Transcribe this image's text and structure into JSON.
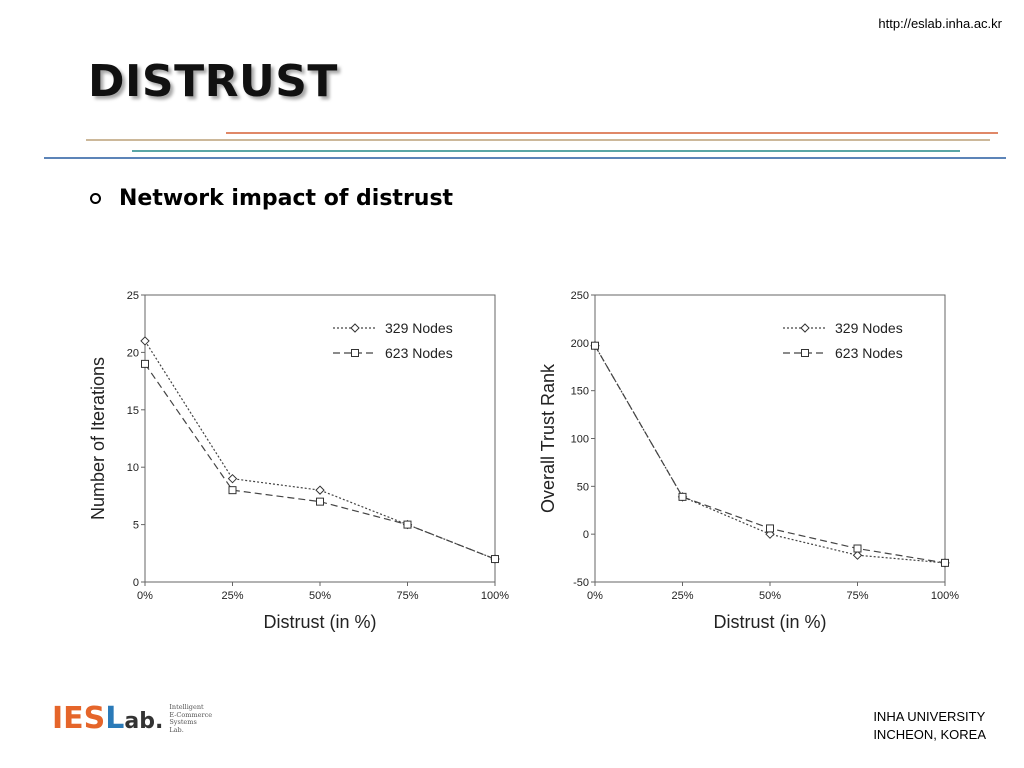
{
  "header": {
    "url": "http://eslab.inha.ac.kr",
    "title": "DISTRUST",
    "rule_colors": [
      "#e08868",
      "#ccb89a",
      "#5aa6a6",
      "#5c84b8"
    ]
  },
  "bullet": {
    "text": "Network impact of distrust"
  },
  "chart_data": [
    {
      "type": "line",
      "x": [
        "0%",
        "25%",
        "50%",
        "75%",
        "100%"
      ],
      "xlabel": "Distrust (in %)",
      "ylabel": "Number of Iterations",
      "ylim": [
        0,
        25
      ],
      "yticks": [
        0,
        5,
        10,
        15,
        20,
        25
      ],
      "legend_position": "top-right",
      "grid": false,
      "series": [
        {
          "name": "329 Nodes",
          "marker": "diamond",
          "dash": "dotted",
          "values": [
            21,
            9,
            8,
            5,
            2
          ]
        },
        {
          "name": "623 Nodes",
          "marker": "square",
          "dash": "dashed",
          "values": [
            19,
            8,
            7,
            5,
            2
          ]
        }
      ]
    },
    {
      "type": "line",
      "x": [
        "0%",
        "25%",
        "50%",
        "75%",
        "100%"
      ],
      "xlabel": "Distrust (in %)",
      "ylabel": "Overall Trust Rank",
      "ylim": [
        -50,
        250
      ],
      "yticks": [
        -50,
        0,
        50,
        100,
        150,
        200,
        250
      ],
      "legend_position": "top-right",
      "grid": false,
      "series": [
        {
          "name": "329 Nodes",
          "marker": "diamond",
          "dash": "dotted",
          "values": [
            197,
            39,
            0,
            -22,
            -30
          ]
        },
        {
          "name": "623 Nodes",
          "marker": "square",
          "dash": "dashed",
          "values": [
            197,
            39,
            6,
            -15,
            -30
          ]
        }
      ]
    }
  ],
  "logo": {
    "main_i": "I",
    "main_es": "ES",
    "main_l": "L",
    "main_ab": "ab.",
    "sub_lines": [
      "Intelligent",
      "E-Commerce",
      "Systems",
      "Lab."
    ]
  },
  "footer": {
    "line1": "INHA UNIVERSITY",
    "line2": "INCHEON, KOREA"
  }
}
